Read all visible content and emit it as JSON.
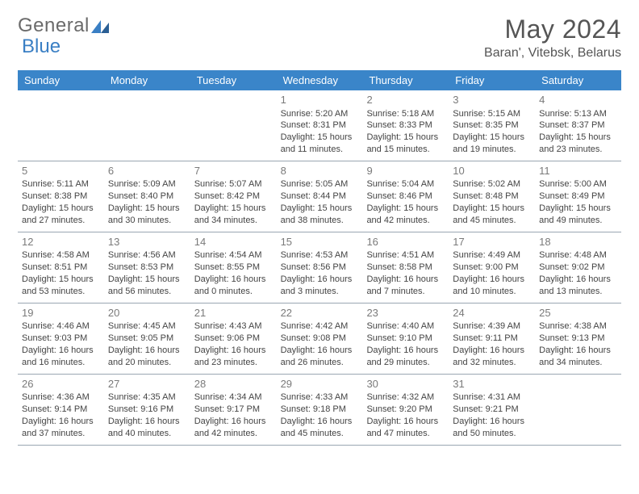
{
  "logo": {
    "general": "General",
    "blue": "Blue"
  },
  "header": {
    "month_title": "May 2024",
    "location": "Baran', Vitebsk, Belarus"
  },
  "colors": {
    "header_bg": "#3a85c9",
    "header_text": "#ffffff",
    "border": "#9aa6b2",
    "page_bg": "#ffffff",
    "text": "#444444",
    "daynum": "#7a7a7a",
    "title": "#555555",
    "logo_gray": "#6a6a6a",
    "logo_blue": "#3a7fc4"
  },
  "day_names": [
    "Sunday",
    "Monday",
    "Tuesday",
    "Wednesday",
    "Thursday",
    "Friday",
    "Saturday"
  ],
  "weeks": [
    [
      {
        "empty": true
      },
      {
        "empty": true
      },
      {
        "empty": true
      },
      {
        "day": "1",
        "sunrise": "Sunrise: 5:20 AM",
        "sunset": "Sunset: 8:31 PM",
        "dl1": "Daylight: 15 hours",
        "dl2": "and 11 minutes."
      },
      {
        "day": "2",
        "sunrise": "Sunrise: 5:18 AM",
        "sunset": "Sunset: 8:33 PM",
        "dl1": "Daylight: 15 hours",
        "dl2": "and 15 minutes."
      },
      {
        "day": "3",
        "sunrise": "Sunrise: 5:15 AM",
        "sunset": "Sunset: 8:35 PM",
        "dl1": "Daylight: 15 hours",
        "dl2": "and 19 minutes."
      },
      {
        "day": "4",
        "sunrise": "Sunrise: 5:13 AM",
        "sunset": "Sunset: 8:37 PM",
        "dl1": "Daylight: 15 hours",
        "dl2": "and 23 minutes."
      }
    ],
    [
      {
        "day": "5",
        "sunrise": "Sunrise: 5:11 AM",
        "sunset": "Sunset: 8:38 PM",
        "dl1": "Daylight: 15 hours",
        "dl2": "and 27 minutes."
      },
      {
        "day": "6",
        "sunrise": "Sunrise: 5:09 AM",
        "sunset": "Sunset: 8:40 PM",
        "dl1": "Daylight: 15 hours",
        "dl2": "and 30 minutes."
      },
      {
        "day": "7",
        "sunrise": "Sunrise: 5:07 AM",
        "sunset": "Sunset: 8:42 PM",
        "dl1": "Daylight: 15 hours",
        "dl2": "and 34 minutes."
      },
      {
        "day": "8",
        "sunrise": "Sunrise: 5:05 AM",
        "sunset": "Sunset: 8:44 PM",
        "dl1": "Daylight: 15 hours",
        "dl2": "and 38 minutes."
      },
      {
        "day": "9",
        "sunrise": "Sunrise: 5:04 AM",
        "sunset": "Sunset: 8:46 PM",
        "dl1": "Daylight: 15 hours",
        "dl2": "and 42 minutes."
      },
      {
        "day": "10",
        "sunrise": "Sunrise: 5:02 AM",
        "sunset": "Sunset: 8:48 PM",
        "dl1": "Daylight: 15 hours",
        "dl2": "and 45 minutes."
      },
      {
        "day": "11",
        "sunrise": "Sunrise: 5:00 AM",
        "sunset": "Sunset: 8:49 PM",
        "dl1": "Daylight: 15 hours",
        "dl2": "and 49 minutes."
      }
    ],
    [
      {
        "day": "12",
        "sunrise": "Sunrise: 4:58 AM",
        "sunset": "Sunset: 8:51 PM",
        "dl1": "Daylight: 15 hours",
        "dl2": "and 53 minutes."
      },
      {
        "day": "13",
        "sunrise": "Sunrise: 4:56 AM",
        "sunset": "Sunset: 8:53 PM",
        "dl1": "Daylight: 15 hours",
        "dl2": "and 56 minutes."
      },
      {
        "day": "14",
        "sunrise": "Sunrise: 4:54 AM",
        "sunset": "Sunset: 8:55 PM",
        "dl1": "Daylight: 16 hours",
        "dl2": "and 0 minutes."
      },
      {
        "day": "15",
        "sunrise": "Sunrise: 4:53 AM",
        "sunset": "Sunset: 8:56 PM",
        "dl1": "Daylight: 16 hours",
        "dl2": "and 3 minutes."
      },
      {
        "day": "16",
        "sunrise": "Sunrise: 4:51 AM",
        "sunset": "Sunset: 8:58 PM",
        "dl1": "Daylight: 16 hours",
        "dl2": "and 7 minutes."
      },
      {
        "day": "17",
        "sunrise": "Sunrise: 4:49 AM",
        "sunset": "Sunset: 9:00 PM",
        "dl1": "Daylight: 16 hours",
        "dl2": "and 10 minutes."
      },
      {
        "day": "18",
        "sunrise": "Sunrise: 4:48 AM",
        "sunset": "Sunset: 9:02 PM",
        "dl1": "Daylight: 16 hours",
        "dl2": "and 13 minutes."
      }
    ],
    [
      {
        "day": "19",
        "sunrise": "Sunrise: 4:46 AM",
        "sunset": "Sunset: 9:03 PM",
        "dl1": "Daylight: 16 hours",
        "dl2": "and 16 minutes."
      },
      {
        "day": "20",
        "sunrise": "Sunrise: 4:45 AM",
        "sunset": "Sunset: 9:05 PM",
        "dl1": "Daylight: 16 hours",
        "dl2": "and 20 minutes."
      },
      {
        "day": "21",
        "sunrise": "Sunrise: 4:43 AM",
        "sunset": "Sunset: 9:06 PM",
        "dl1": "Daylight: 16 hours",
        "dl2": "and 23 minutes."
      },
      {
        "day": "22",
        "sunrise": "Sunrise: 4:42 AM",
        "sunset": "Sunset: 9:08 PM",
        "dl1": "Daylight: 16 hours",
        "dl2": "and 26 minutes."
      },
      {
        "day": "23",
        "sunrise": "Sunrise: 4:40 AM",
        "sunset": "Sunset: 9:10 PM",
        "dl1": "Daylight: 16 hours",
        "dl2": "and 29 minutes."
      },
      {
        "day": "24",
        "sunrise": "Sunrise: 4:39 AM",
        "sunset": "Sunset: 9:11 PM",
        "dl1": "Daylight: 16 hours",
        "dl2": "and 32 minutes."
      },
      {
        "day": "25",
        "sunrise": "Sunrise: 4:38 AM",
        "sunset": "Sunset: 9:13 PM",
        "dl1": "Daylight: 16 hours",
        "dl2": "and 34 minutes."
      }
    ],
    [
      {
        "day": "26",
        "sunrise": "Sunrise: 4:36 AM",
        "sunset": "Sunset: 9:14 PM",
        "dl1": "Daylight: 16 hours",
        "dl2": "and 37 minutes."
      },
      {
        "day": "27",
        "sunrise": "Sunrise: 4:35 AM",
        "sunset": "Sunset: 9:16 PM",
        "dl1": "Daylight: 16 hours",
        "dl2": "and 40 minutes."
      },
      {
        "day": "28",
        "sunrise": "Sunrise: 4:34 AM",
        "sunset": "Sunset: 9:17 PM",
        "dl1": "Daylight: 16 hours",
        "dl2": "and 42 minutes."
      },
      {
        "day": "29",
        "sunrise": "Sunrise: 4:33 AM",
        "sunset": "Sunset: 9:18 PM",
        "dl1": "Daylight: 16 hours",
        "dl2": "and 45 minutes."
      },
      {
        "day": "30",
        "sunrise": "Sunrise: 4:32 AM",
        "sunset": "Sunset: 9:20 PM",
        "dl1": "Daylight: 16 hours",
        "dl2": "and 47 minutes."
      },
      {
        "day": "31",
        "sunrise": "Sunrise: 4:31 AM",
        "sunset": "Sunset: 9:21 PM",
        "dl1": "Daylight: 16 hours",
        "dl2": "and 50 minutes."
      },
      {
        "empty": true
      }
    ]
  ]
}
